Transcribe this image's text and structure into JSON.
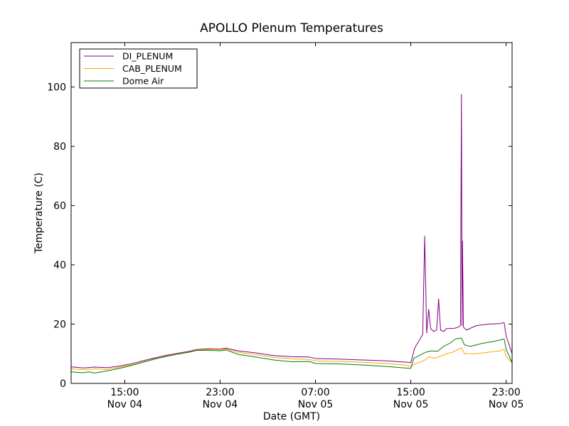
{
  "chart_data": {
    "type": "line",
    "title": "APOLLO Plenum Temperatures",
    "xlabel": "Date (GMT)",
    "ylabel": "Temperature (C)",
    "x_unit": "hours",
    "xlim": [
      "Nov 04 10:30",
      "Nov 05 23:30"
    ],
    "ylim": [
      0,
      115
    ],
    "yticks": [
      0,
      20,
      40,
      60,
      80,
      100
    ],
    "xticks": [
      {
        "at": "Nov 04 15:00",
        "time": "15:00",
        "date": "Nov 04"
      },
      {
        "at": "Nov 04 23:00",
        "time": "23:00",
        "date": "Nov 04"
      },
      {
        "at": "Nov 05 07:00",
        "time": "07:00",
        "date": "Nov 05"
      },
      {
        "at": "Nov 05 15:00",
        "time": "15:00",
        "date": "Nov 05"
      },
      {
        "at": "Nov 05 23:00",
        "time": "23:00",
        "date": "Nov 05"
      }
    ],
    "grid": false,
    "legend_position": "top-left",
    "series": [
      {
        "name": "DI_PLENUM",
        "color": "#800080",
        "points": [
          [
            "Nov 04 10:30",
            5.6
          ],
          [
            "Nov 04 11:30",
            5.2
          ],
          [
            "Nov 04 12:30",
            5.5
          ],
          [
            "Nov 04 13:30",
            5.3
          ],
          [
            "Nov 04 14:30",
            5.8
          ],
          [
            "Nov 04 15:30",
            6.6
          ],
          [
            "Nov 04 16:30",
            7.6
          ],
          [
            "Nov 04 17:30",
            8.6
          ],
          [
            "Nov 04 18:30",
            9.5
          ],
          [
            "Nov 04 19:30",
            10.2
          ],
          [
            "Nov 04 20:30",
            10.9
          ],
          [
            "Nov 04 21:00",
            11.4
          ],
          [
            "Nov 04 22:00",
            11.7
          ],
          [
            "Nov 04 23:00",
            11.6
          ],
          [
            "Nov 04 23:30",
            11.9
          ],
          [
            "Nov 05 00:30",
            11.0
          ],
          [
            "Nov 05 02:00",
            10.3
          ],
          [
            "Nov 05 03:30",
            9.4
          ],
          [
            "Nov 05 05:00",
            9.0
          ],
          [
            "Nov 05 06:30",
            8.9
          ],
          [
            "Nov 05 07:00",
            8.4
          ],
          [
            "Nov 05 09:00",
            8.2
          ],
          [
            "Nov 05 11:00",
            7.9
          ],
          [
            "Nov 05 13:00",
            7.6
          ],
          [
            "Nov 05 14:30",
            7.2
          ],
          [
            "Nov 05 15:00",
            7.0
          ],
          [
            "Nov 05 15:20",
            12.0
          ],
          [
            "Nov 05 15:45",
            14.8
          ],
          [
            "Nov 05 16:00",
            16.5
          ],
          [
            "Nov 05 16:10",
            49.7
          ],
          [
            "Nov 05 16:20",
            17.0
          ],
          [
            "Nov 05 16:30",
            25.0
          ],
          [
            "Nov 05 16:40",
            18.5
          ],
          [
            "Nov 05 16:55",
            17.5
          ],
          [
            "Nov 05 17:10",
            18.0
          ],
          [
            "Nov 05 17:20",
            28.5
          ],
          [
            "Nov 05 17:30",
            18.0
          ],
          [
            "Nov 05 17:45",
            17.5
          ],
          [
            "Nov 05 18:00",
            18.5
          ],
          [
            "Nov 05 18:40",
            18.6
          ],
          [
            "Nov 05 19:00",
            19.0
          ],
          [
            "Nov 05 19:10",
            19.5
          ],
          [
            "Nov 05 19:15",
            97.5
          ],
          [
            "Nov 05 19:18",
            19.5
          ],
          [
            "Nov 05 19:20",
            48.0
          ],
          [
            "Nov 05 19:25",
            19.0
          ],
          [
            "Nov 05 19:40",
            18.0
          ],
          [
            "Nov 05 20:30",
            19.5
          ],
          [
            "Nov 05 21:30",
            20.0
          ],
          [
            "Nov 05 22:30",
            20.2
          ],
          [
            "Nov 05 22:50",
            20.5
          ],
          [
            "Nov 05 23:00",
            16.0
          ],
          [
            "Nov 05 23:30",
            10.0
          ]
        ]
      },
      {
        "name": "CAB_PLENUM",
        "color": "#FFA500",
        "points": [
          [
            "Nov 04 10:30",
            4.9
          ],
          [
            "Nov 04 11:30",
            4.6
          ],
          [
            "Nov 04 12:30",
            4.9
          ],
          [
            "Nov 04 13:30",
            4.7
          ],
          [
            "Nov 04 14:30",
            5.4
          ],
          [
            "Nov 04 15:30",
            6.2
          ],
          [
            "Nov 04 16:30",
            7.2
          ],
          [
            "Nov 04 17:30",
            8.3
          ],
          [
            "Nov 04 18:30",
            9.2
          ],
          [
            "Nov 04 19:30",
            10.0
          ],
          [
            "Nov 04 20:30",
            10.7
          ],
          [
            "Nov 04 21:00",
            11.2
          ],
          [
            "Nov 04 22:00",
            11.5
          ],
          [
            "Nov 04 23:00",
            11.4
          ],
          [
            "Nov 04 23:30",
            11.6
          ],
          [
            "Nov 05 00:30",
            10.5
          ],
          [
            "Nov 05 02:00",
            9.7
          ],
          [
            "Nov 05 03:30",
            8.8
          ],
          [
            "Nov 05 05:00",
            8.3
          ],
          [
            "Nov 05 06:30",
            8.1
          ],
          [
            "Nov 05 07:00",
            7.6
          ],
          [
            "Nov 05 09:00",
            7.4
          ],
          [
            "Nov 05 11:00",
            7.1
          ],
          [
            "Nov 05 13:00",
            6.7
          ],
          [
            "Nov 05 14:30",
            6.2
          ],
          [
            "Nov 05 15:00",
            5.8
          ],
          [
            "Nov 05 15:20",
            6.5
          ],
          [
            "Nov 05 15:45",
            7.2
          ],
          [
            "Nov 05 16:00",
            7.5
          ],
          [
            "Nov 05 16:15",
            8.0
          ],
          [
            "Nov 05 16:30",
            9.0
          ],
          [
            "Nov 05 17:00",
            8.5
          ],
          [
            "Nov 05 17:30",
            9.2
          ],
          [
            "Nov 05 18:00",
            10.0
          ],
          [
            "Nov 05 18:30",
            10.5
          ],
          [
            "Nov 05 19:00",
            11.5
          ],
          [
            "Nov 05 19:15",
            12.0
          ],
          [
            "Nov 05 19:30",
            10.0
          ],
          [
            "Nov 05 20:30",
            10.0
          ],
          [
            "Nov 05 21:30",
            10.5
          ],
          [
            "Nov 05 22:30",
            11.0
          ],
          [
            "Nov 05 22:50",
            11.5
          ],
          [
            "Nov 05 23:00",
            9.0
          ],
          [
            "Nov 05 23:30",
            7.0
          ]
        ]
      },
      {
        "name": "Dome Air",
        "color": "#008000",
        "points": [
          [
            "Nov 04 10:30",
            3.9
          ],
          [
            "Nov 04 11:30",
            3.6
          ],
          [
            "Nov 04 12:00",
            3.9
          ],
          [
            "Nov 04 12:30",
            3.5
          ],
          [
            "Nov 04 13:30",
            4.2
          ],
          [
            "Nov 04 14:30",
            5.0
          ],
          [
            "Nov 04 15:30",
            6.0
          ],
          [
            "Nov 04 16:30",
            7.1
          ],
          [
            "Nov 04 17:30",
            8.2
          ],
          [
            "Nov 04 18:30",
            9.1
          ],
          [
            "Nov 04 19:30",
            9.9
          ],
          [
            "Nov 04 20:30",
            10.6
          ],
          [
            "Nov 04 21:00",
            11.1
          ],
          [
            "Nov 04 22:00",
            11.2
          ],
          [
            "Nov 04 23:00",
            11.0
          ],
          [
            "Nov 04 23:30",
            11.3
          ],
          [
            "Nov 05 00:30",
            9.8
          ],
          [
            "Nov 05 02:00",
            8.9
          ],
          [
            "Nov 05 03:30",
            7.9
          ],
          [
            "Nov 05 05:00",
            7.3
          ],
          [
            "Nov 05 06:30",
            7.4
          ],
          [
            "Nov 05 07:00",
            6.7
          ],
          [
            "Nov 05 09:00",
            6.6
          ],
          [
            "Nov 05 11:00",
            6.2
          ],
          [
            "Nov 05 13:00",
            5.7
          ],
          [
            "Nov 05 14:30",
            5.2
          ],
          [
            "Nov 05 15:00",
            5.1
          ],
          [
            "Nov 05 15:15",
            8.5
          ],
          [
            "Nov 05 15:45",
            9.5
          ],
          [
            "Nov 05 16:15",
            10.5
          ],
          [
            "Nov 05 16:45",
            11.0
          ],
          [
            "Nov 05 17:15",
            10.8
          ],
          [
            "Nov 05 17:45",
            12.5
          ],
          [
            "Nov 05 18:15",
            13.5
          ],
          [
            "Nov 05 18:45",
            15.0
          ],
          [
            "Nov 05 19:15",
            15.3
          ],
          [
            "Nov 05 19:30",
            13.0
          ],
          [
            "Nov 05 20:00",
            12.5
          ],
          [
            "Nov 05 21:00",
            13.5
          ],
          [
            "Nov 05 22:00",
            14.2
          ],
          [
            "Nov 05 22:50",
            15.0
          ],
          [
            "Nov 05 23:00",
            11.5
          ],
          [
            "Nov 05 23:30",
            7.0
          ]
        ]
      }
    ]
  }
}
